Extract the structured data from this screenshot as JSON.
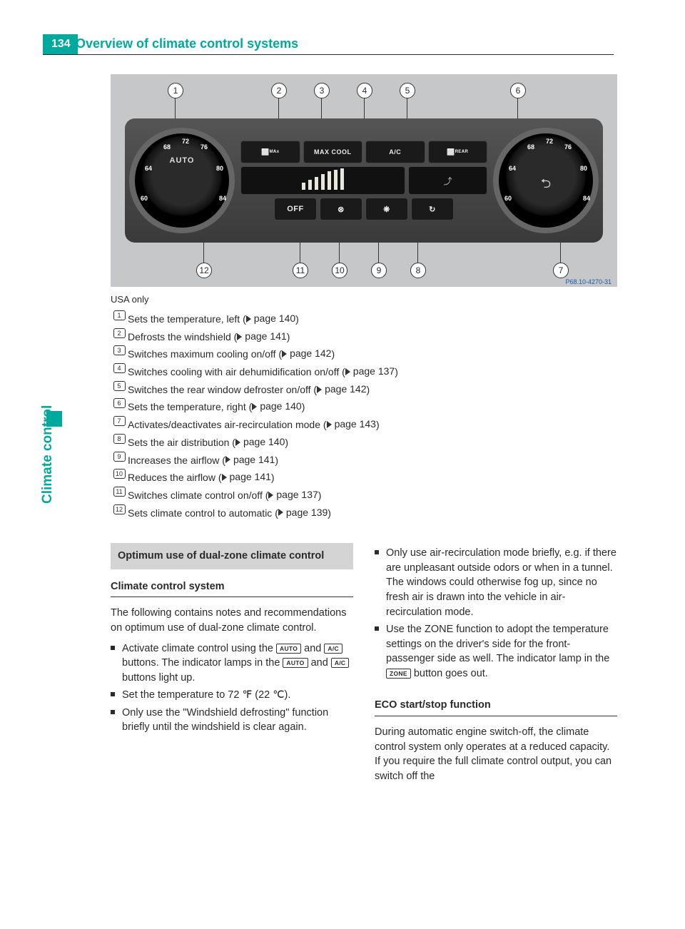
{
  "page_number": "134",
  "section_title": "Overview of climate control systems",
  "side_label": "Climate control",
  "diagram": {
    "temp_marks": [
      "60",
      "64",
      "68",
      "72",
      "76",
      "80",
      "84"
    ],
    "left_dial_label": "AUTO",
    "right_dial_icon": "car-icon",
    "top_callouts": [
      "1",
      "2",
      "3",
      "4",
      "5",
      "6"
    ],
    "bottom_callouts": [
      "12",
      "11",
      "10",
      "9",
      "8",
      "7"
    ],
    "buttons_row1": [
      "⬜ᴹᴬˣ",
      "MAX COOL",
      "A/C",
      "⬜ᴿᴱᴬᴿ"
    ],
    "bars_count": 7,
    "mode_icon": "airflow-icon",
    "buttons_row3": [
      "OFF",
      "⊗",
      "❋",
      "↻"
    ],
    "code": "P68.10-4270-31"
  },
  "caption": "USA only",
  "defs": [
    {
      "sym": "1",
      "text": "Sets the temperature, left",
      "page": "140"
    },
    {
      "sym": "2",
      "text": "Defrosts the windshield",
      "page": "141"
    },
    {
      "sym": "3",
      "text": "Switches maximum cooling on/off",
      "page": "142"
    },
    {
      "sym": "4",
      "text": "Switches cooling with air dehumidification on/off",
      "page": "137"
    },
    {
      "sym": "5",
      "text": "Switches the rear window defroster on/off",
      "page": "142"
    },
    {
      "sym": "6",
      "text": "Sets the temperature, right",
      "page": "140"
    },
    {
      "sym": "7",
      "text": "Activates/deactivates air-recirculation mode",
      "page": "143"
    },
    {
      "sym": "8",
      "text": "Sets the air distribution",
      "page": "140"
    },
    {
      "sym": "9",
      "text": "Increases the airflow",
      "page": "141"
    },
    {
      "sym": "10",
      "text": "Reduces the airflow",
      "page": "141"
    },
    {
      "sym": "11",
      "text": "Switches climate control on/off",
      "page": "137"
    },
    {
      "sym": "12",
      "text": "Sets climate control to automatic",
      "page": "139"
    }
  ],
  "left_col": {
    "grey_heading": "Optimum use of dual-zone climate control",
    "sub_heading": "Climate control system",
    "intro": "The following contains notes and recommendations on optimum use of dual-zone climate control.",
    "b1_pre": "Activate climate control using the ",
    "b1_btn1": "AUTO",
    "b1_mid1": " and ",
    "b1_btn2": "A/C",
    "b1_mid2": " buttons. The indicator lamps in the ",
    "b1_btn3": "AUTO",
    "b1_mid3": " and ",
    "b1_btn4": "A/C",
    "b1_post": " buttons light up.",
    "b2": "Set the temperature to 72 ℉ (22 ℃).",
    "b3": "Only use the \"Windshield defrosting\" function briefly until the windshield is clear again."
  },
  "right_col": {
    "b4": "Only use air-recirculation mode briefly, e.g. if there are unpleasant outside odors or when in a tunnel. The windows could otherwise fog up, since no fresh air is drawn into the vehicle in air-recirculation mode.",
    "b5_pre": "Use the ZONE function to adopt the temperature settings on the driver's side for the front-passenger side as well. The indicator lamp in the ",
    "b5_btn": "ZONE",
    "b5_post": " button goes out.",
    "sub_heading": "ECO start/stop function",
    "para": "During automatic engine switch-off, the climate control system only operates at a reduced capacity. If you require the full climate control output, you can switch off the"
  }
}
